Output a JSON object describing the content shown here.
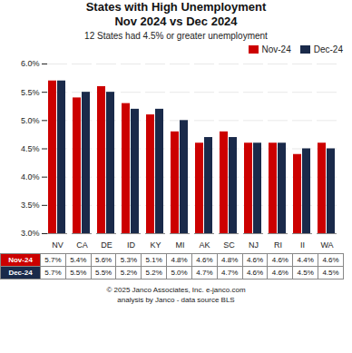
{
  "chart_data": {
    "type": "bar",
    "title": "States with High Unemployment\nNov 2024 vs Dec 2024",
    "subtitle": "12 States had 4.5% or greater unemployment",
    "categories": [
      "NV",
      "CA",
      "DE",
      "ID",
      "KY",
      "MI",
      "AK",
      "SC",
      "NJ",
      "RI",
      "II",
      "WA"
    ],
    "series": [
      {
        "name": "Nov-24",
        "color": "#cc0000",
        "values": [
          5.7,
          5.4,
          5.6,
          5.3,
          5.1,
          4.8,
          4.6,
          4.8,
          4.6,
          4.6,
          4.4,
          4.6
        ],
        "value_labels": [
          "5.7%",
          "5.4%",
          "5.6%",
          "5.3%",
          "5.1%",
          "4.8%",
          "4.6%",
          "4.8%",
          "4.6%",
          "4.6%",
          "4.4%",
          "4.6%"
        ]
      },
      {
        "name": "Dec-24",
        "color": "#1a2a4a",
        "values": [
          5.7,
          5.5,
          5.5,
          5.2,
          5.2,
          5.0,
          4.7,
          4.7,
          4.6,
          4.6,
          4.5,
          4.5
        ],
        "value_labels": [
          "5.7%",
          "5.5%",
          "5.5%",
          "5.2%",
          "5.2%",
          "5.0%",
          "4.7%",
          "4.7%",
          "4.6%",
          "4.6%",
          "4.5%",
          "4.5%"
        ]
      }
    ],
    "ylim": [
      3.0,
      6.0
    ],
    "yticks": [
      {
        "value": 3.0,
        "label": "3.0%"
      },
      {
        "value": 3.5,
        "label": "3.5%"
      },
      {
        "value": 4.0,
        "label": "4.0%"
      },
      {
        "value": 4.5,
        "label": "4.5%"
      },
      {
        "value": 5.0,
        "label": "5.0%"
      },
      {
        "value": 5.5,
        "label": "5.5%"
      },
      {
        "value": 6.0,
        "label": "6.0%"
      }
    ],
    "grid": true,
    "legend": "upper right",
    "annotations": [
      "© 2025 Janco Associates, Inc. e-janco.com",
      "analysis by Janco - data source BLS"
    ]
  }
}
